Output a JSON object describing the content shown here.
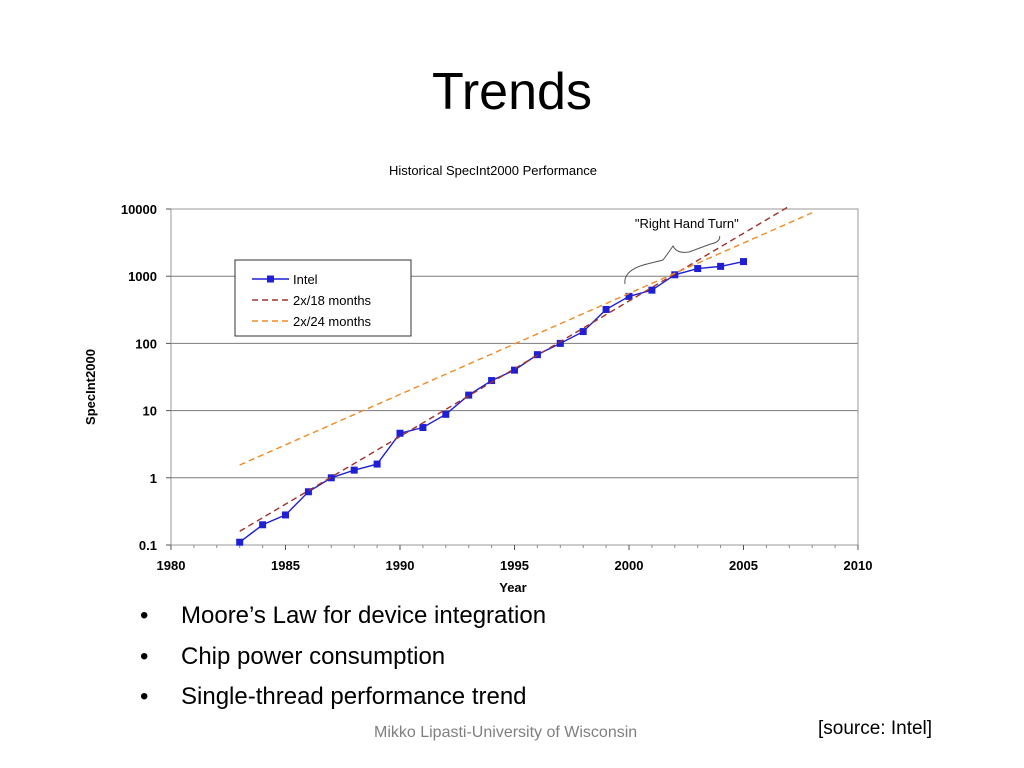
{
  "slide": {
    "title": "Trends",
    "bullets": [
      "Moore’s Law for device integration",
      "Chip power consumption",
      "Single-thread performance trend"
    ],
    "bullet_glyph": "•",
    "footer": "Mikko Lipasti-University of Wisconsin",
    "source": "[source: Intel]"
  },
  "chart_data": {
    "type": "line",
    "title": "Historical SpecInt2000 Performance",
    "xlabel": "Year",
    "ylabel": "SpecInt2000",
    "xlim": [
      1980,
      2010
    ],
    "ylim": [
      0.1,
      10000
    ],
    "y_scale": "log",
    "x_ticks": [
      "1980",
      "1985",
      "1990",
      "1995",
      "2000",
      "2005",
      "2010"
    ],
    "y_ticks": [
      "0.1",
      "1",
      "10",
      "100",
      "1000",
      "10000"
    ],
    "grid": "horizontal",
    "legend_position": "upper-left",
    "series": [
      {
        "name": "Intel",
        "color": "#1f1fd6",
        "style": "solid-square-markers",
        "x": [
          1983,
          1984,
          1985,
          1986,
          1987,
          1988,
          1989,
          1990,
          1991,
          1992,
          1993,
          1994,
          1995,
          1996,
          1997,
          1998,
          1999,
          2000,
          2001,
          2002,
          2003,
          2004,
          2005
        ],
        "y": [
          0.11,
          0.2,
          0.28,
          0.62,
          1.0,
          1.3,
          1.6,
          4.6,
          5.6,
          8.8,
          17,
          28,
          40,
          68,
          100,
          150,
          320,
          500,
          620,
          1050,
          1300,
          1400,
          1650
        ]
      },
      {
        "name": "2x/18 months",
        "color": "#a0302a",
        "style": "dashed",
        "x": [
          1983,
          2007
        ],
        "y": [
          0.16,
          11000
        ]
      },
      {
        "name": "2x/24 months",
        "color": "#f08a24",
        "style": "dashed",
        "x": [
          1983,
          2008
        ],
        "y": [
          1.55,
          8800
        ]
      }
    ],
    "annotation": {
      "text": "\"Right Hand Turn\""
    }
  }
}
